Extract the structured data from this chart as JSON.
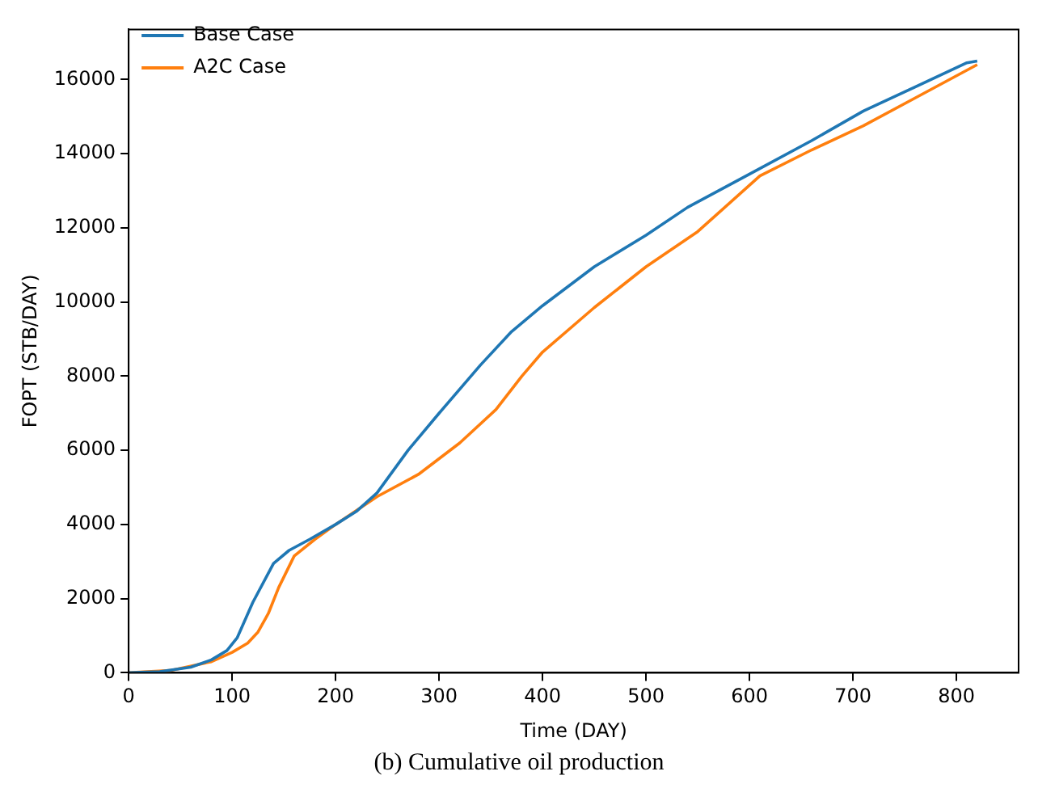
{
  "chart_data": {
    "type": "line",
    "xlabel": "Time (DAY)",
    "ylabel": "FOPT (STB/DAY)",
    "annotations": [
      "(b) Cumulative oil production"
    ],
    "xlim": [
      0,
      860
    ],
    "xticks": [
      0,
      100,
      200,
      300,
      400,
      500,
      600,
      700,
      800
    ],
    "ylim": [
      0,
      17350
    ],
    "yticks": [
      0,
      2000,
      4000,
      6000,
      8000,
      10000,
      12000,
      14000,
      16000
    ],
    "grid": false,
    "legend": "top left",
    "marker": "none",
    "line_style": "solid",
    "series": [
      {
        "name": "Base Case",
        "color": "#1f77b4",
        "x": [
          0,
          30,
          60,
          80,
          95,
          105,
          120,
          140,
          155,
          175,
          200,
          220,
          240,
          270,
          300,
          340,
          370,
          400,
          450,
          500,
          540,
          600,
          660,
          710,
          760,
          810,
          820
        ],
        "values": [
          0,
          30,
          150,
          350,
          600,
          950,
          1900,
          2950,
          3300,
          3600,
          4000,
          4350,
          4850,
          6000,
          7000,
          8300,
          9200,
          9900,
          10950,
          11800,
          12550,
          13450,
          14350,
          15150,
          15800,
          16450,
          16500
        ]
      },
      {
        "name": "A2C Case",
        "color": "#ff7f0e",
        "x": [
          0,
          40,
          80,
          100,
          115,
          125,
          135,
          145,
          160,
          180,
          200,
          240,
          280,
          320,
          355,
          380,
          400,
          450,
          500,
          550,
          610,
          660,
          710,
          760,
          820
        ],
        "values": [
          0,
          60,
          300,
          550,
          800,
          1100,
          1600,
          2300,
          3150,
          3600,
          4000,
          4750,
          5350,
          6200,
          7100,
          8000,
          8650,
          9850,
          10950,
          11900,
          13400,
          14100,
          14750,
          15500,
          16400
        ]
      }
    ]
  }
}
